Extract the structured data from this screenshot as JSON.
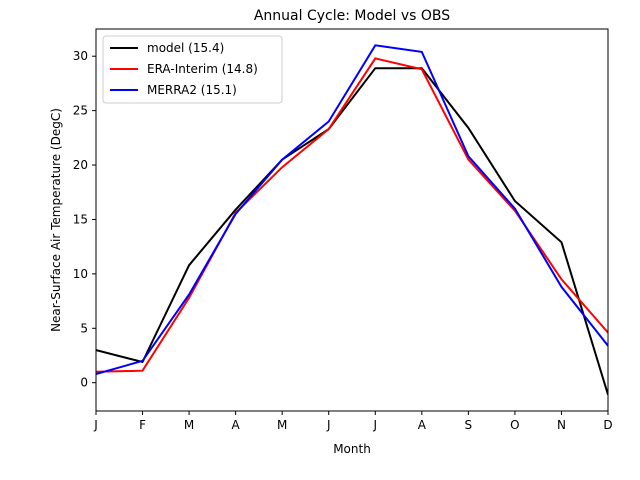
{
  "chart_data": {
    "type": "line",
    "title": "Annual Cycle: Model vs OBS",
    "xlabel": "Month",
    "ylabel": "Near-Surface Air Temperature (DegC)",
    "categories": [
      "J",
      "F",
      "M",
      "A",
      "M",
      "J",
      "J",
      "A",
      "S",
      "O",
      "N",
      "D"
    ],
    "xlim": [
      1,
      12
    ],
    "ylim": [
      -2.6,
      32.5
    ],
    "yticks": [
      0,
      5,
      10,
      15,
      20,
      25,
      30
    ],
    "legend_position": "top-left",
    "grid": false,
    "series": [
      {
        "name": "model (15.4)",
        "color": "#000000",
        "values": [
          3.0,
          1.9,
          10.8,
          15.9,
          20.5,
          23.3,
          28.9,
          28.9,
          23.4,
          16.7,
          12.9,
          -1.1
        ]
      },
      {
        "name": "ERA-Interim (14.8)",
        "color": "#ff0000",
        "values": [
          1.0,
          1.1,
          7.8,
          15.6,
          19.8,
          23.3,
          29.8,
          28.8,
          20.5,
          15.8,
          9.5,
          4.6
        ]
      },
      {
        "name": "MERRA2 (15.1)",
        "color": "#0000ff",
        "values": [
          0.8,
          2.0,
          8.1,
          15.5,
          20.5,
          24.0,
          31.0,
          30.4,
          20.8,
          16.0,
          8.8,
          3.4
        ]
      }
    ]
  }
}
